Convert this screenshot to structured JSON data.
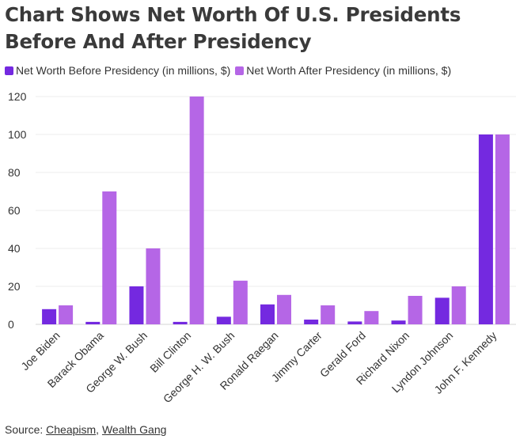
{
  "title": "Chart Shows Net Worth Of U.S. Presidents Before And After Presidency",
  "legend": [
    {
      "name": "Net Worth Before Presidency (in millions, $)",
      "color": "#7429e0"
    },
    {
      "name": "Net Worth After Presidency (in millions, $)",
      "color": "#b566e6"
    }
  ],
  "source": {
    "prefix": "Source: ",
    "links": [
      "Cheapism",
      "Wealth Gang"
    ],
    "separator": ", "
  },
  "chart_data": {
    "type": "bar",
    "title": "Chart Shows Net Worth Of U.S. Presidents Before And After Presidency",
    "xlabel": "",
    "ylabel": "",
    "ylim": [
      0,
      120
    ],
    "yticks": [
      0,
      20,
      40,
      60,
      80,
      100,
      120
    ],
    "grid": true,
    "legend_position": "top-left",
    "categories": [
      "Joe Biden",
      "Barack Obama",
      "George W. Bush",
      "Bill Clinton",
      "George H. W. Bush",
      "Ronald Raegan",
      "Jimmy Carter",
      "Gerald Ford",
      "Richard Nixon",
      "Lyndon Johnson",
      "John F. Kennedy"
    ],
    "series": [
      {
        "name": "Net Worth Before Presidency (in millions, $)",
        "color": "#7429e0",
        "values": [
          8,
          1.3,
          20,
          1.3,
          4,
          10.5,
          2.5,
          1.5,
          2,
          14,
          100
        ]
      },
      {
        "name": "Net Worth After Presidency (in millions, $)",
        "color": "#b566e6",
        "values": [
          10,
          70,
          40,
          120,
          23,
          15.5,
          10,
          7,
          15,
          20,
          100
        ]
      }
    ]
  }
}
